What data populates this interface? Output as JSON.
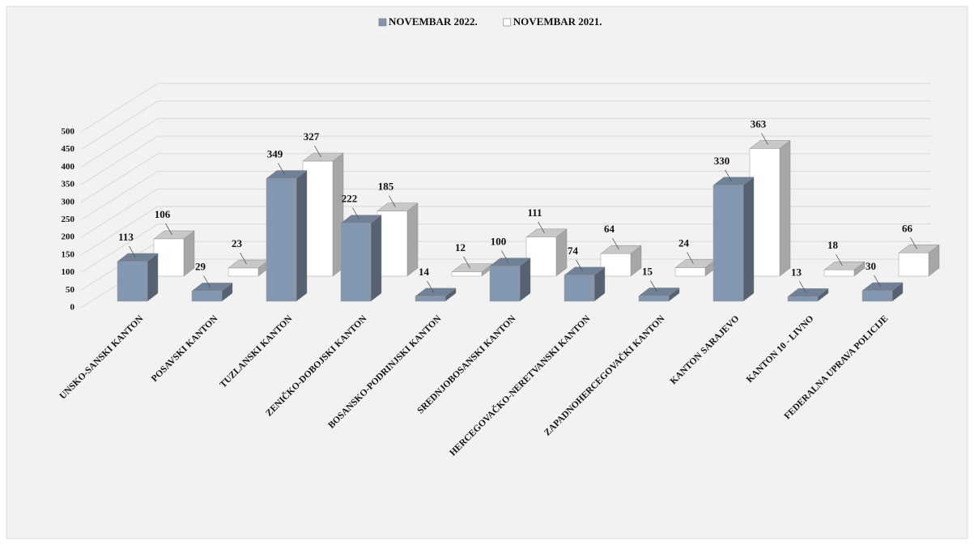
{
  "chart_data": {
    "type": "bar3d",
    "categories": [
      "UNSKO-SANSKI KANTON",
      "POSAVSKI KANTON",
      "TUZLANSKI KANTON",
      "ZENIČKO-DOBOJSKI KANTON",
      "BOSANSKO-PODRINJSKI KANTON",
      "SREDNJOBOSANSKI KANTON",
      "HERCEGOVAČKO-NERETVANSKI KANTON",
      "ZAPADNOHERCEGOVAČKI KANTON",
      "KANTON SARAJEVO",
      "KANTON 10 - LIVNO",
      "FEDERALNA UPRAVA POLICIJE"
    ],
    "series": [
      {
        "name": "NOVEMBAR 2022.",
        "color": "#8497b0",
        "values": [
          113,
          29,
          349,
          222,
          14,
          100,
          74,
          15,
          330,
          13,
          30
        ]
      },
      {
        "name": "NOVEMBAR 2021.",
        "color": "#ffffff",
        "values": [
          106,
          23,
          327,
          185,
          12,
          111,
          64,
          24,
          363,
          18,
          66
        ]
      }
    ],
    "ylim": [
      0,
      500
    ],
    "yticks": [
      0,
      50,
      100,
      150,
      200,
      250,
      300,
      350,
      400,
      450,
      500
    ],
    "grid": true
  }
}
